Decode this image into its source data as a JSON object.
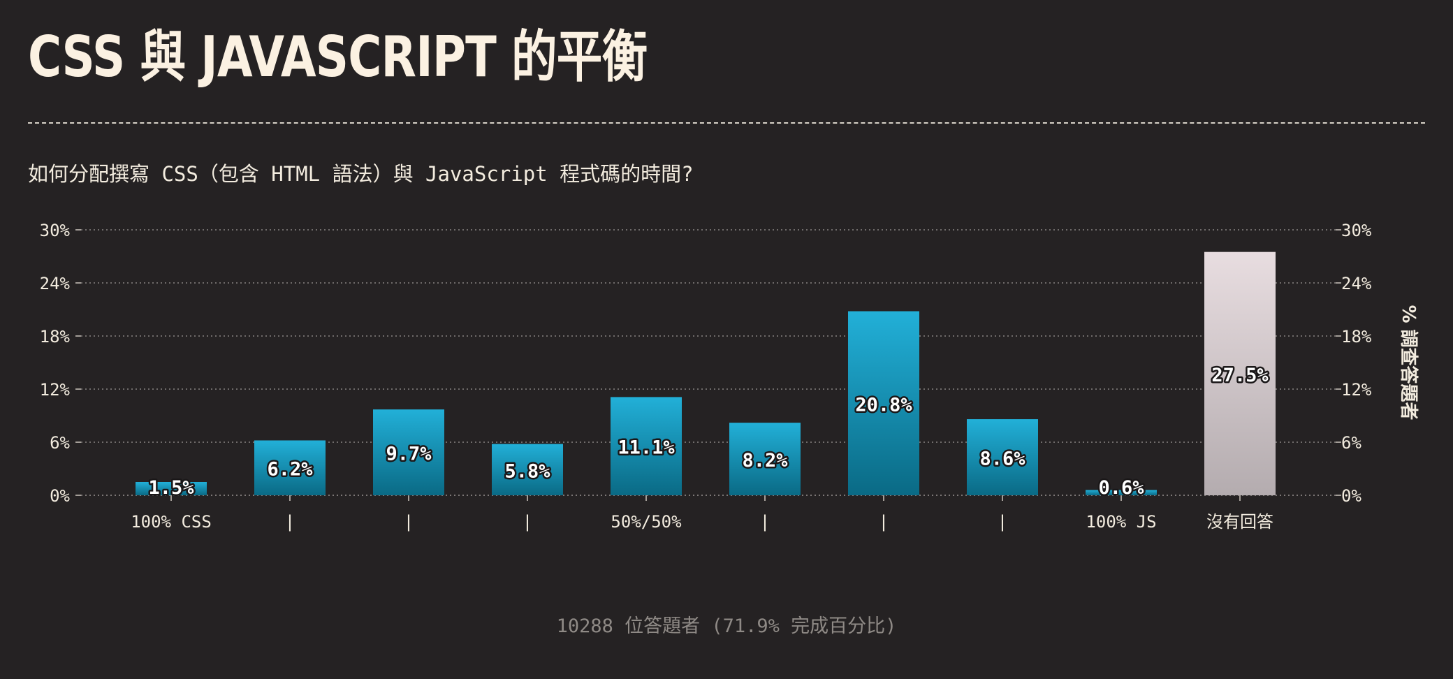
{
  "title": "CSS 與 JAVASCRIPT 的平衡",
  "question": "如何分配撰寫 CSS（包含 HTML 語法）與 JavaScript 程式碼的時間?",
  "footer": "10288 位答題者 (71.9% 完成百分比)",
  "colors": {
    "background": "#252223",
    "bar_top": "#22b0d8",
    "bar_bottom": "#0a6a85",
    "no_answer_top": "#e8dde0",
    "no_answer_bottom": "#b4acaf",
    "text": "#f3ecdf"
  },
  "chart_data": {
    "type": "bar",
    "categories": [
      "100% CSS",
      "|",
      "|",
      "|",
      "50%/50%",
      "|",
      "|",
      "|",
      "100% JS",
      "沒有回答"
    ],
    "values": [
      1.5,
      6.2,
      9.7,
      5.8,
      11.1,
      8.2,
      20.8,
      8.6,
      0.6,
      27.5
    ],
    "data_labels": [
      "1.5%",
      "6.2%",
      "9.7%",
      "5.8%",
      "11.1%",
      "8.2%",
      "20.8%",
      "8.6%",
      "0.6%",
      "27.5%"
    ],
    "ylabel": "% 調查答題者",
    "ylim": [
      0,
      30
    ],
    "yticks": [
      0,
      6,
      12,
      18,
      24,
      30
    ],
    "ytick_labels": [
      "0%",
      "6%",
      "12%",
      "18%",
      "24%",
      "30%"
    ],
    "grid": true,
    "highlight_category": "沒有回答"
  }
}
